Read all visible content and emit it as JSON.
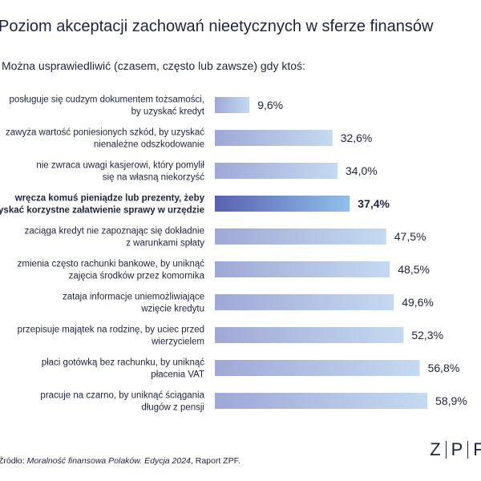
{
  "title": "Poziom akceptacji zachowań nieetycznych w sferze finansów",
  "subtitle": "Można usprawiedliwić (czasem, często lub zawsze) gdy ktoś:",
  "source": {
    "prefix": "Źródło: ",
    "italic": "Moralność finansowa Polaków. Edycja 2024",
    "suffix": ", Raport ZPF."
  },
  "logo": {
    "letters": [
      "Z",
      "P",
      "F"
    ]
  },
  "colors": {
    "bar_light_start": "#9fa8d6",
    "bar_light_end": "#c4daf0",
    "highlight_start": "#5a61b0",
    "highlight_end": "#8fc1ea",
    "text": "#1f2340"
  },
  "chart_data": {
    "type": "bar",
    "orientation": "horizontal",
    "title": "Poziom akceptacji zachowań nieetycznych w sferze finansów",
    "subtitle": "Można usprawiedliwić (czasem, często lub zawsze) gdy ktoś:",
    "unit": "%",
    "xlim": [
      0,
      60
    ],
    "grid": false,
    "highlight_index": 3,
    "categories": [
      [
        "posługuje się cudzym dokumentem tożsamości,",
        "by uzyskać kredyt"
      ],
      [
        "zawyża wartość poniesionych szkód, by uzyskać",
        "nienależne odszkodowanie"
      ],
      [
        "nie zwraca uwagi kasjerowi, który pomylił",
        "się na własną niekorzyść"
      ],
      [
        "wręcza komuś pieniądze lub prezenty, żeby",
        "uzyskać korzystne załatwienie sprawy w urzędzie"
      ],
      [
        "zaciąga kredyt nie zapoznając się dokładnie",
        "z warunkami spłaty"
      ],
      [
        "zmienia często rachunki bankowe, by uniknąć",
        "zajęcia środków przez komornika"
      ],
      [
        "zataja informacje uniemożliwiające",
        "wzięcie kredytu"
      ],
      [
        "przepisuje majątek na rodzinę, by uciec przed",
        "wierzycielem"
      ],
      [
        "płaci gotówką bez rachunku, by uniknąć",
        "płacenia VAT"
      ],
      [
        "pracuje na czarno, by uniknąć ściągania",
        "długów z pensji"
      ]
    ],
    "values": [
      9.6,
      32.6,
      34.0,
      37.4,
      47.5,
      48.5,
      49.6,
      52.3,
      56.8,
      58.9
    ],
    "value_labels": [
      "9,6%",
      "32,6%",
      "34,0%",
      "37,4%",
      "47,5%",
      "48,5%",
      "49,6%",
      "52,3%",
      "56,8%",
      "58,9%"
    ]
  }
}
